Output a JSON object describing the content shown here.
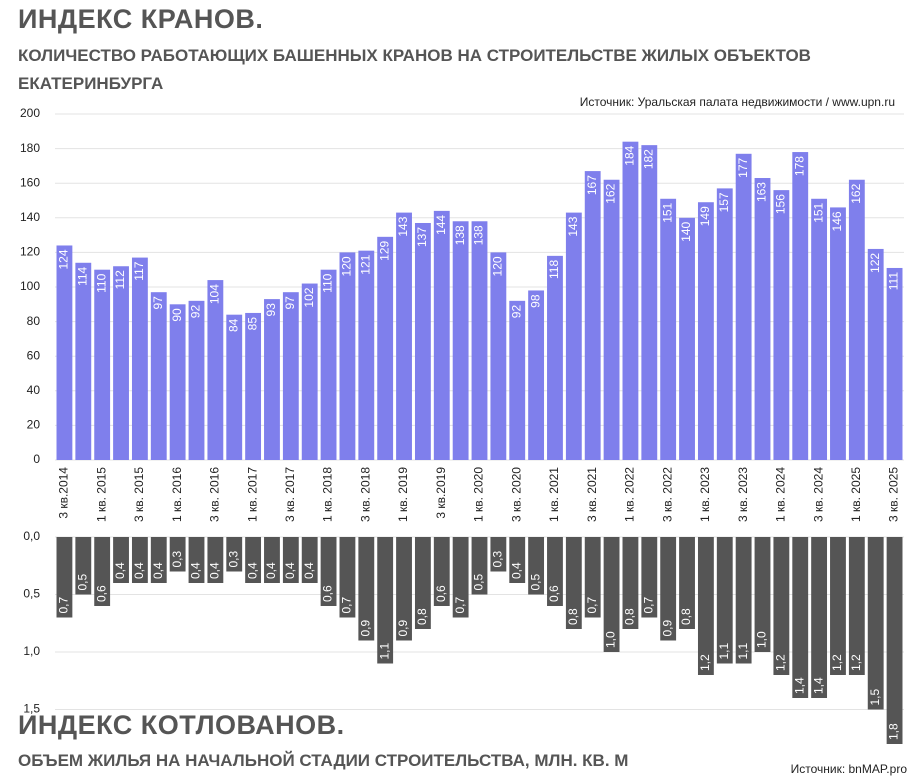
{
  "chart_data": [
    {
      "type": "bar",
      "title": "ИНДЕКС КРАНОВ.",
      "subtitle": "КОЛИЧЕСТВО РАБОТАЮЩИХ БАШЕННЫХ КРАНОВ НА СТРОИТЕЛЬСТВЕ ЖИЛЫХ ОБЪЕКТОВ ЕКАТЕРИНБУРГА",
      "source": "Источник: Уральская палата недвижимости / www.upn.ru",
      "categories": [
        "3 кв.2014",
        null,
        "1 кв. 2015",
        null,
        "3 кв. 2015",
        null,
        "1 кв. 2016",
        null,
        "3 кв. 2016",
        null,
        "1 кв. 2017",
        null,
        "3 кв. 2017",
        null,
        "1 кв. 2018",
        null,
        "3 кв. 2018",
        null,
        "1 кв. 2019",
        null,
        "3 кв.2019",
        null,
        "1 кв. 2020",
        null,
        "3 кв. 2020",
        null,
        "1 кв. 2021",
        null,
        "3 кв. 2021",
        null,
        "1 кв. 2022",
        null,
        "3 кв. 2022",
        null,
        "1 кв. 2023",
        null,
        "3 кв. 2023",
        null,
        "1 кв. 2024",
        null,
        "3 кв. 2024",
        null,
        "1 кв. 2025",
        null,
        "3 кв. 2025"
      ],
      "values": [
        124,
        114,
        110,
        112,
        117,
        97,
        90,
        92,
        104,
        84,
        85,
        93,
        97,
        102,
        110,
        120,
        121,
        129,
        143,
        137,
        144,
        138,
        138,
        120,
        92,
        98,
        118,
        143,
        167,
        162,
        184,
        182,
        151,
        140,
        149,
        157,
        177,
        163,
        156,
        178,
        151,
        146,
        162,
        122,
        111
      ],
      "color": "#7f7fec",
      "ylim": [
        0,
        200
      ],
      "yticks": [
        0,
        20,
        40,
        60,
        80,
        100,
        120,
        140,
        160,
        180,
        200
      ],
      "grid": true
    },
    {
      "type": "bar",
      "title": "ИНДЕКС КОТЛОВАНОВ.",
      "subtitle": "ОБЪЕМ ЖИЛЬЯ НА НАЧАЛЬНОЙ СТАДИИ СТРОИТЕЛЬСТВА, МЛН. КВ. М",
      "source": "Источник: bnMAP.pro",
      "values": [
        0.7,
        0.5,
        0.6,
        0.4,
        0.4,
        0.4,
        0.3,
        0.4,
        0.4,
        0.3,
        0.4,
        0.4,
        0.4,
        0.4,
        0.6,
        0.7,
        0.9,
        1.1,
        0.9,
        0.8,
        0.6,
        0.7,
        0.5,
        0.3,
        0.4,
        0.5,
        0.6,
        0.8,
        0.7,
        1.0,
        0.8,
        0.7,
        0.9,
        0.8,
        1.2,
        1.1,
        1.1,
        1.0,
        1.2,
        1.4,
        1.4,
        1.2,
        1.2,
        1.5,
        1.8
      ],
      "value_labels": [
        "0,7",
        "0,5",
        "0,6",
        "0,4",
        "0,4",
        "0,4",
        "0,3",
        "0,4",
        "0,4",
        "0,3",
        "0,4",
        "0,4",
        "0,4",
        "0,4",
        "0,6",
        "0,7",
        "0,9",
        "1,1",
        "0,9",
        "0,8",
        "0,6",
        "0,7",
        "0,5",
        "0,3",
        "0,4",
        "0,5",
        "0,6",
        "0,8",
        "0,7",
        "1,0",
        "0,8",
        "0,7",
        "0,9",
        "0,8",
        "1,2",
        "1,1",
        "1,1",
        "1,0",
        "1,2",
        "1,4",
        "1,4",
        "1,2",
        "1,2",
        "1,5",
        "1,8"
      ],
      "color": "#555555",
      "ylim": [
        0,
        1.8
      ],
      "y_inverted": true,
      "yticks": [
        {
          "value": 0,
          "label": "0,0"
        },
        {
          "value": 0.5,
          "label": "0,5"
        },
        {
          "value": 1.0,
          "label": "1,0"
        },
        {
          "value": 1.5,
          "label": "1,5"
        }
      ],
      "grid": true
    }
  ]
}
